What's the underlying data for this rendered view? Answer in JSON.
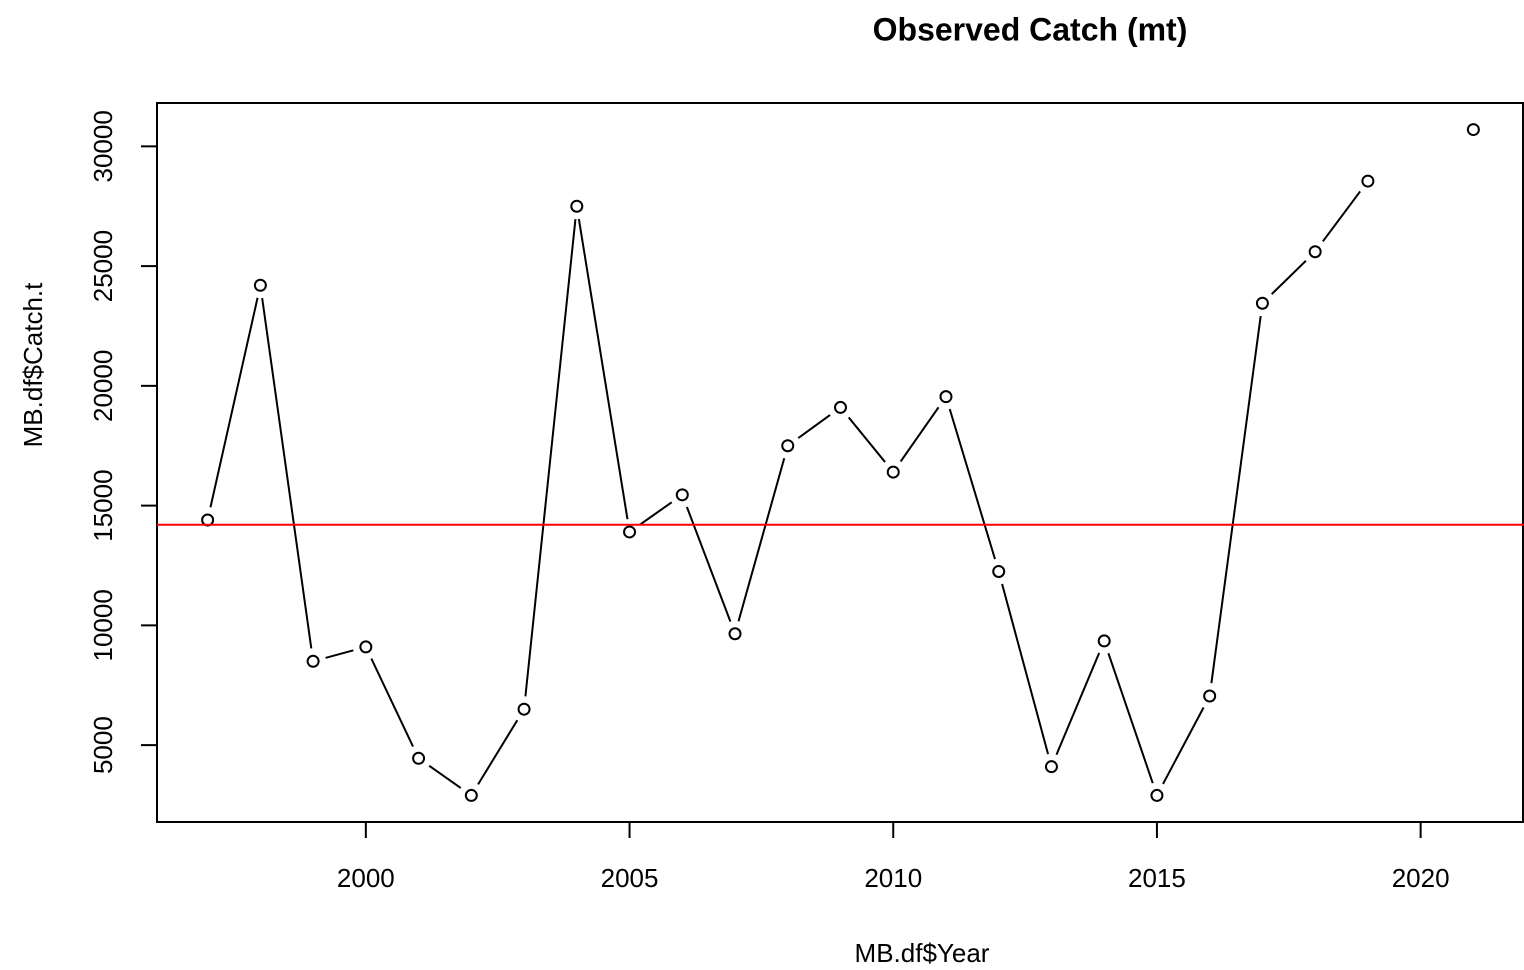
{
  "chart_data": {
    "type": "line",
    "title": "Observed Catch (mt)",
    "x_label": "MB.df$Year",
    "y_label": "MB.df$Catch.t",
    "x": [
      1997,
      1998,
      1999,
      2000,
      2001,
      2002,
      2003,
      2004,
      2005,
      2006,
      2007,
      2008,
      2009,
      2010,
      2011,
      2012,
      2013,
      2014,
      2015,
      2016,
      2017,
      2018,
      2019,
      2020,
      2021
    ],
    "series": [
      {
        "color": "#000000",
        "values": [
          14400,
          24200,
          8500,
          9100,
          4450,
          2900,
          6500,
          27500,
          13900,
          15450,
          9650,
          17500,
          19100,
          16400,
          19550,
          12250,
          4100,
          9350,
          2900,
          7050,
          23450,
          25600,
          28550,
          null,
          30700
        ]
      }
    ],
    "hline": {
      "value": 14200,
      "color": "#ff0000"
    },
    "xlim": [
      1996.04,
      2021.96
    ],
    "ylim": [
      1790,
      31810
    ],
    "xticks": [
      2000,
      2005,
      2010,
      2015,
      2020
    ],
    "yticks": [
      5000,
      10000,
      15000,
      20000,
      25000,
      30000
    ]
  }
}
